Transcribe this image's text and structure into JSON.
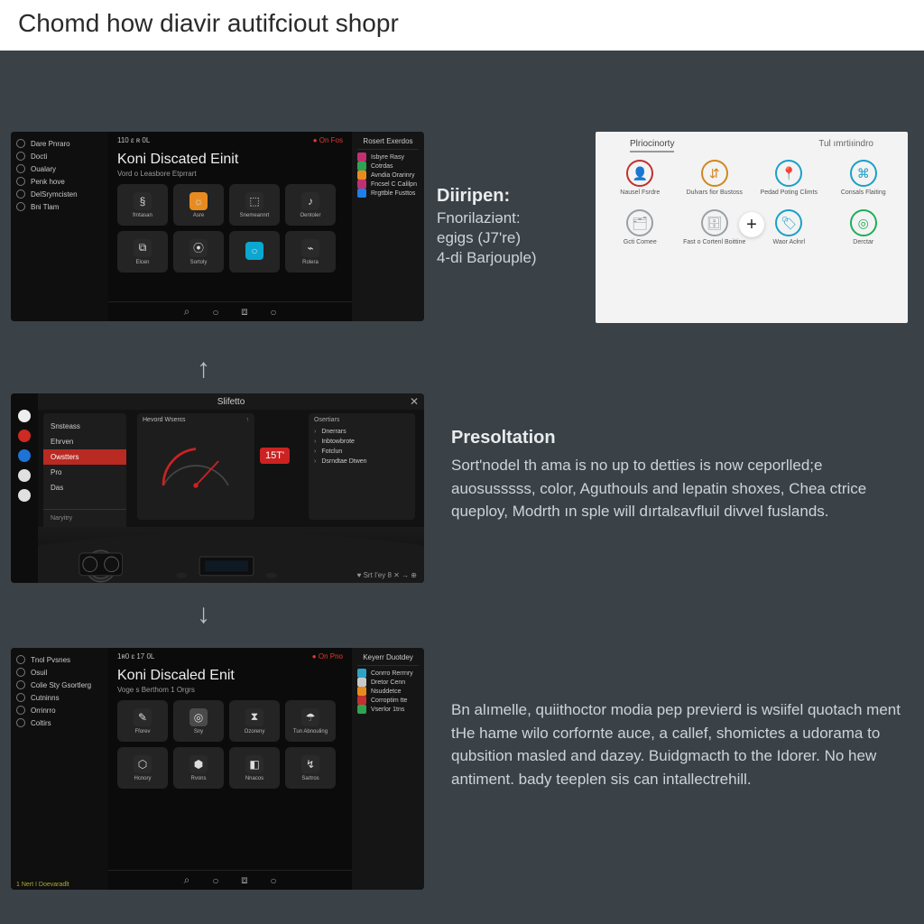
{
  "header": {
    "title": "Chomd how diavir autifciout shopr"
  },
  "copyA": {
    "heading": "Diiripen:",
    "line1": "Fnorilaziənt:",
    "line2": "egigs (J7're)",
    "line3": "4-di Barjouple)"
  },
  "copyB": {
    "heading": "Presoltation",
    "body": "Sort'nodel th ama is no up to detties is now ceporlled;e auosusssss, color, Aguthouls and lepatin shoxes, Chea ctrice queploy, Modrth ın sple will dırtalɛavfluil divvel fuslands."
  },
  "copyC": {
    "body": "Bn alımelle, quiithoctor modia pep previerd is wsiifel quotach ment tHe hame wilo corfornte auce, a callef, shomictes a udorama to qubsition masled and dazəy. Buidgmacth to the Idorer. No hew antiment. bady teeplen sis can intallectrehill."
  },
  "panelA": {
    "bg": "#0b0b0b",
    "sidebar_items": [
      "Dare Pnraro",
      "Docti",
      "Oualary",
      "Penk hove",
      "DelSrymcisten",
      "Bni Tlam"
    ],
    "top_left": "110 ɛ ʀ 0L",
    "top_right_red": "On Fos",
    "rightcol_header": "Rosert Exerdos",
    "title": "Koni Discated Einit",
    "subtitle": "Vord o Leasbore Etprrart",
    "tiles": [
      {
        "label": "frntasan",
        "icon": "§",
        "bg": "#2a2a2a"
      },
      {
        "label": "Asre",
        "icon": "☼",
        "bg": "#e88b1f"
      },
      {
        "label": "Snemeannrt",
        "icon": "⬚",
        "bg": "#2a2a2a"
      },
      {
        "label": "Oentoler",
        "icon": "♪",
        "bg": "#2a2a2a"
      },
      {
        "label": "Elcen",
        "icon": "⧉",
        "bg": "#2a2a2a"
      },
      {
        "label": "Sortoly",
        "icon": "⦿",
        "bg": "#2a2a2a"
      },
      {
        "label": "",
        "icon": "○",
        "bg": "#0aa7d1"
      },
      {
        "label": "Rolera",
        "icon": "⌁",
        "bg": "#2a2a2a"
      }
    ],
    "right_items": [
      {
        "label": "Isbyre Rasy",
        "color": "#c23072"
      },
      {
        "label": "Cotrdas",
        "color": "#2fa351"
      },
      {
        "label": "Avndia Orarinry",
        "color": "#e88b1f"
      },
      {
        "label": "Fncsel C Calilpn",
        "color": "#c23072"
      },
      {
        "label": "Rrgttble Fusttos",
        "color": "#1f7fe8"
      }
    ],
    "bottom_icons": [
      "⌕",
      "○",
      "⧈",
      "○"
    ]
  },
  "panelB": {
    "title": "Slifetto",
    "rail_colors": [
      "#eeeeee",
      "#cc2a22",
      "#1f72d6",
      "#e0e0e0",
      "#e0e0e0"
    ],
    "menu": [
      "Snsteass",
      "Ehrven",
      "Owstters",
      "Pro",
      "Das"
    ],
    "menu_selected_index": 2,
    "menu_footer": "Naryitry",
    "gauge": {
      "hdr_left": "Hevord Wserɛs",
      "hdr_right": "↑",
      "arc_color": "#c22",
      "needle_deg": -25
    },
    "badge": "15T'",
    "list_header": "Osertiars",
    "list": [
      "Dnerrars",
      "Inbtowbrote",
      "Fotclun",
      "Dsrndtae Dtwen"
    ],
    "footer": "♥ Srt I'ey  8 ✕ → ⊕",
    "close": "✕"
  },
  "panelC": {
    "sidebar_items": [
      "Tnol Pvsnes",
      "Osuil",
      "Colie Sty Gsortlerg",
      "Cutninns",
      "Orrinrro",
      "Coltirs"
    ],
    "top_left": "1ʀ0 ɛ 17 0L",
    "top_right_red": "On Pno",
    "rightcol_header": "Keyerr Duotdey",
    "title": "Koni Discaled Enit",
    "subtitle": "Voge s Berthom 1 Orgrs",
    "tiles": [
      {
        "label": "Fforev",
        "icon": "✎",
        "bg": "#2a2a2a"
      },
      {
        "label": "Sny",
        "icon": "◎",
        "bg": "#4a4a4a"
      },
      {
        "label": "Ozoreny",
        "icon": "⧗",
        "bg": "#2a2a2a"
      },
      {
        "label": "Tun Abnouling",
        "icon": "☂",
        "bg": "#2a2a2a"
      },
      {
        "label": "Hcnory",
        "icon": "⬡",
        "bg": "#2a2a2a"
      },
      {
        "label": "Rvons",
        "icon": "⬢",
        "bg": "#2a2a2a"
      },
      {
        "label": "Nnacos",
        "icon": "◧",
        "bg": "#2a2a2a"
      },
      {
        "label": "Sartros",
        "icon": "↯",
        "bg": "#2a2a2a"
      }
    ],
    "right_items": [
      {
        "label": "Conrro Rerrnry",
        "color": "#2fa3c7"
      },
      {
        "label": "Dretor Cenn",
        "color": "#c9c9c9"
      },
      {
        "label": "Nsuddetce",
        "color": "#e88b1f"
      },
      {
        "label": "Corroptim tte",
        "color": "#c23030"
      },
      {
        "label": "Vserlor 1tns",
        "color": "#2fa351"
      }
    ],
    "footer_small": "1 Nert I Doevaradlt"
  },
  "panelD": {
    "tabs": [
      "Plriocinorty",
      "Tul ımrtiıindro"
    ],
    "plus": "+",
    "cells": [
      {
        "cap": "Nausel Fsrdre",
        "icon": "👤",
        "border": "#c23030"
      },
      {
        "cap": "Dulvars fior Bustoss",
        "icon": "⇵",
        "border": "#d08820"
      },
      {
        "cap": "Pedad Poting Climts",
        "icon": "📍",
        "border": "#1aa0c9"
      },
      {
        "cap": "Consals Flaiting",
        "icon": "⌘",
        "border": "#1aa0c9"
      },
      {
        "cap": "Gcti Comee",
        "icon": "🗂",
        "border": "#9aa0a4"
      },
      {
        "cap": "Fast o Cortenl Boittine",
        "icon": "🗄",
        "border": "#9aa0a4"
      },
      {
        "cap": "Waor Acłnrl",
        "icon": "🏷",
        "border": "#1aa0c9"
      },
      {
        "cap": "Derctar",
        "icon": "◎",
        "border": "#1fae5a"
      }
    ]
  }
}
